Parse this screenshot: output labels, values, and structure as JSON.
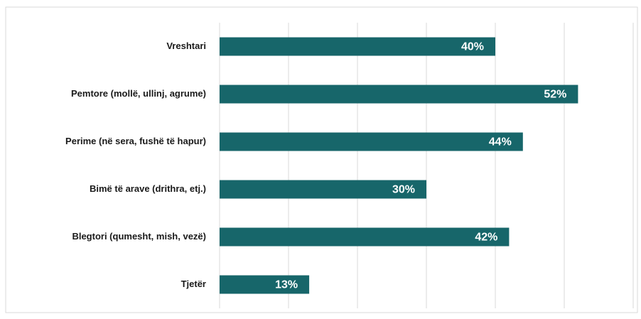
{
  "chart_data": {
    "type": "bar",
    "orientation": "horizontal",
    "categories": [
      "Vreshtari",
      "Pemtore (mollë, ullinj, agrume)",
      "Perime (në sera, fushë të hapur)",
      "Bimë të arave (drithra, etj.)",
      "Blegtori (qumesht, mish, vezë)",
      "Tjetër"
    ],
    "values": [
      40,
      52,
      44,
      30,
      42,
      13
    ],
    "value_labels": [
      "40%",
      "52%",
      "44%",
      "30%",
      "42%",
      "13%"
    ],
    "color": "#17666a",
    "xlim": [
      0,
      60
    ],
    "xticks": [
      0,
      10,
      20,
      30,
      40,
      50,
      60
    ],
    "grid": true
  }
}
